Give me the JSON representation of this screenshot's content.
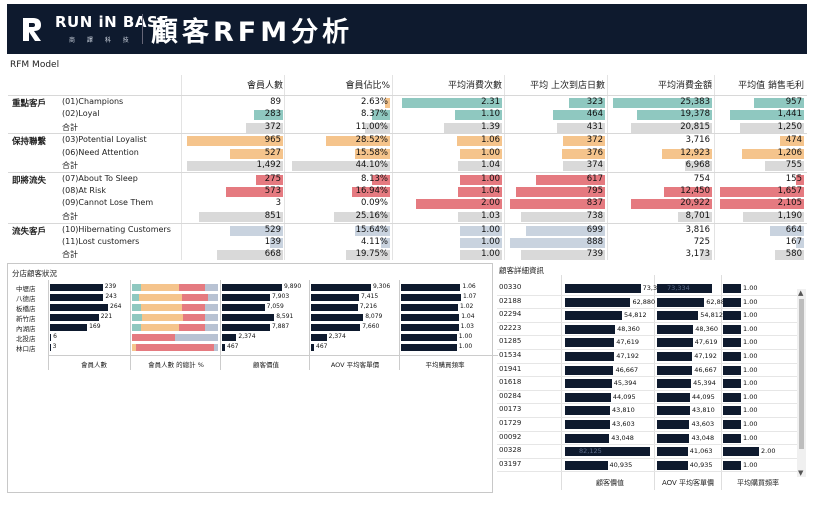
{
  "header": {
    "brand_name": "RUN iN BASE",
    "brand_sub": "商 譯 科 技",
    "title": "顧客RFM分析"
  },
  "model_label": "RFM Model",
  "colors": {
    "navy": "#0e1a2e",
    "teal": "#8fc8c0",
    "orange": "#f5c48c",
    "red": "#e57a80",
    "grey": "#d9d9d9",
    "slate": "#c9d3df"
  },
  "columns": [
    "會員人數",
    "會員佔比%",
    "平均消費次數",
    "平均 上次到店日數",
    "平均消費金額",
    "平均值 銷售毛利"
  ],
  "groups": [
    {
      "name": "重點客戶",
      "rows": [
        {
          "segment": "(01)Champions",
          "values": [
            "89",
            "2.63%",
            "2.31",
            "323",
            "25,383",
            "957"
          ],
          "fill": [
            0,
            0.05,
            0.96,
            0.38,
            1,
            0.59
          ],
          "color": [
            "none",
            "orange",
            "teal",
            "teal",
            "teal",
            "teal"
          ]
        },
        {
          "segment": "(02)Loyal",
          "values": [
            "283",
            "8.37%",
            "1.10",
            "464",
            "19,378",
            "1,441"
          ],
          "fill": [
            0.3,
            0.18,
            0.45,
            0.55,
            0.76,
            0.88
          ],
          "color": [
            "teal",
            "teal",
            "teal",
            "teal",
            "teal",
            "teal"
          ]
        },
        {
          "segment": "合計",
          "values": [
            "372",
            "11.00%",
            "1.39",
            "431",
            "20,815",
            "1,250"
          ],
          "fill": [
            0.39,
            0.25,
            0.56,
            0.51,
            0.82,
            0.76
          ],
          "color": [
            "grey",
            "grey",
            "grey",
            "grey",
            "grey",
            "grey"
          ]
        }
      ]
    },
    {
      "name": "保持聯繫",
      "rows": [
        {
          "segment": "(03)Potential Loyalist",
          "values": [
            "965",
            "28.52%",
            "1.06",
            "372",
            "3,716",
            "474"
          ],
          "fill": [
            1,
            0.64,
            0.43,
            0.44,
            0.15,
            0.29
          ],
          "color": [
            "orange",
            "orange",
            "orange",
            "orange",
            "none",
            "orange"
          ]
        },
        {
          "segment": "(06)Need Attention",
          "values": [
            "527",
            "15.58%",
            "1.00",
            "376",
            "12,923",
            "1,206"
          ],
          "fill": [
            0.55,
            0.35,
            0.4,
            0.45,
            0.51,
            0.74
          ],
          "color": [
            "orange",
            "orange",
            "orange",
            "orange",
            "orange",
            "orange"
          ]
        },
        {
          "segment": "合計",
          "values": [
            "1,492",
            "44.10%",
            "1.04",
            "374",
            "6,968",
            "755"
          ],
          "fill": [
            1,
            0.98,
            0.42,
            0.44,
            0.27,
            0.46
          ],
          "color": [
            "grey",
            "grey",
            "grey",
            "grey",
            "grey",
            "grey"
          ]
        }
      ]
    },
    {
      "name": "即將流失",
      "rows": [
        {
          "segment": "(07)About To Sleep",
          "values": [
            "275",
            "8.13%",
            "1.00",
            "617",
            "754",
            "155"
          ],
          "fill": [
            0.28,
            0.18,
            0.4,
            0.73,
            0.03,
            0.1
          ],
          "color": [
            "red",
            "red",
            "red",
            "red",
            "none",
            "red"
          ]
        },
        {
          "segment": "(08)At Risk",
          "values": [
            "573",
            "16.94%",
            "1.04",
            "795",
            "12,450",
            "1,657"
          ],
          "fill": [
            0.59,
            0.38,
            0.42,
            0.94,
            0.49,
            1
          ],
          "color": [
            "red",
            "red",
            "red",
            "red",
            "red",
            "red"
          ]
        },
        {
          "segment": "(09)Cannot Lose Them",
          "values": [
            "3",
            "0.09%",
            "2.00",
            "837",
            "20,922",
            "2,105"
          ],
          "fill": [
            0,
            0,
            0.83,
            1,
            0.82,
            1
          ],
          "color": [
            "none",
            "none",
            "red",
            "red",
            "red",
            "red"
          ]
        },
        {
          "segment": "合計",
          "values": [
            "851",
            "25.16%",
            "1.03",
            "738",
            "8,701",
            "1,190"
          ],
          "fill": [
            0.88,
            0.56,
            0.42,
            0.88,
            0.34,
            0.73
          ],
          "color": [
            "grey",
            "grey",
            "grey",
            "grey",
            "grey",
            "grey"
          ]
        }
      ]
    },
    {
      "name": "流失客戶",
      "rows": [
        {
          "segment": "(10)Hibernating Customers",
          "values": [
            "529",
            "15.64%",
            "1.00",
            "699",
            "3,816",
            "664"
          ],
          "fill": [
            0.55,
            0.35,
            0.4,
            0.83,
            0.15,
            0.4
          ],
          "color": [
            "slate",
            "slate",
            "slate",
            "slate",
            "none",
            "slate"
          ]
        },
        {
          "segment": "(11)Lost customers",
          "values": [
            "139",
            "4.11%",
            "1.00",
            "888",
            "725",
            "167"
          ],
          "fill": [
            0.14,
            0.09,
            0.4,
            1,
            0.03,
            0.1
          ],
          "color": [
            "slate",
            "slate",
            "slate",
            "slate",
            "none",
            "slate"
          ]
        },
        {
          "segment": "合計",
          "values": [
            "668",
            "19.75%",
            "1.00",
            "739",
            "3,173",
            "580"
          ],
          "fill": [
            0.69,
            0.44,
            0.4,
            0.88,
            0.12,
            0.35
          ],
          "color": [
            "grey",
            "grey",
            "grey",
            "grey",
            "grey",
            "grey"
          ]
        }
      ]
    }
  ],
  "branch_panel": {
    "title": "分店顧客狀況",
    "branches": [
      "中壢店",
      "八德店",
      "板橋店",
      "新竹店",
      "內湖店",
      "北投店",
      "林口店"
    ],
    "member_count": [
      "239",
      "243",
      "264",
      "221",
      "169",
      "6",
      "3"
    ],
    "member_fill": [
      0.91,
      0.92,
      1,
      0.84,
      0.64,
      0.02,
      0.01
    ],
    "share_stacks": [
      [
        0.1,
        0.45,
        0.3,
        0.15
      ],
      [
        0.08,
        0.5,
        0.3,
        0.12
      ],
      [
        0.1,
        0.48,
        0.27,
        0.15
      ],
      [
        0.12,
        0.47,
        0.26,
        0.15
      ],
      [
        0.1,
        0.45,
        0.3,
        0.15
      ],
      [
        0,
        0,
        0.5,
        0.5
      ],
      [
        0,
        0.05,
        0.9,
        0.05
      ]
    ],
    "customer_value": [
      "9,890",
      "7,903",
      "7,059",
      "8,591",
      "7,887",
      "2,374",
      "467"
    ],
    "customer_value_fill": [
      1,
      0.8,
      0.71,
      0.87,
      0.8,
      0.24,
      0.05
    ],
    "aov": [
      "9,306",
      "7,415",
      "7,216",
      "8,079",
      "7,660",
      "2,374",
      "467"
    ],
    "aov_fill": [
      1,
      0.8,
      0.78,
      0.87,
      0.82,
      0.26,
      0.05
    ],
    "frequency": [
      "1.06",
      "1.07",
      "1.02",
      "1.04",
      "1.03",
      "1.00",
      "1.00"
    ],
    "frequency_fill": [
      0.99,
      1,
      0.95,
      0.97,
      0.96,
      0.93,
      0.93
    ],
    "footers": [
      "會員人數",
      "會員人數 的總計 %",
      "顧客價值",
      "AOV 平均客單價",
      "平均購買頻率"
    ]
  },
  "detail_panel": {
    "title": "顧客詳細資訊",
    "rows": [
      {
        "id": "00330",
        "value": "73,334",
        "aov": "73,334",
        "freq": "1.00"
      },
      {
        "id": "02188",
        "value": "62,880",
        "aov": "62,880",
        "freq": "1.00"
      },
      {
        "id": "02294",
        "value": "54,812",
        "aov": "54,812",
        "freq": "1.00"
      },
      {
        "id": "02223",
        "value": "48,360",
        "aov": "48,360",
        "freq": "1.00"
      },
      {
        "id": "01285",
        "value": "47,619",
        "aov": "47,619",
        "freq": "1.00"
      },
      {
        "id": "01534",
        "value": "47,192",
        "aov": "47,192",
        "freq": "1.00"
      },
      {
        "id": "01941",
        "value": "46,667",
        "aov": "46,667",
        "freq": "1.00"
      },
      {
        "id": "01618",
        "value": "45,394",
        "aov": "45,394",
        "freq": "1.00"
      },
      {
        "id": "00284",
        "value": "44,095",
        "aov": "44,095",
        "freq": "1.00"
      },
      {
        "id": "00173",
        "value": "43,810",
        "aov": "43,810",
        "freq": "1.00"
      },
      {
        "id": "01729",
        "value": "43,603",
        "aov": "43,603",
        "freq": "1.00"
      },
      {
        "id": "00092",
        "value": "43,048",
        "aov": "43,048",
        "freq": "1.00"
      },
      {
        "id": "00328",
        "value": "82,125",
        "aov": "41,063",
        "freq": "2.00"
      },
      {
        "id": "03197",
        "value": "40,935",
        "aov": "40,935",
        "freq": "1.00"
      }
    ],
    "value_fill": [
      0.89,
      0.77,
      0.67,
      0.59,
      0.58,
      0.58,
      0.57,
      0.55,
      0.54,
      0.53,
      0.53,
      0.52,
      1,
      0.5
    ],
    "aov_fill": [
      1,
      0.86,
      0.75,
      0.66,
      0.65,
      0.64,
      0.64,
      0.62,
      0.6,
      0.6,
      0.59,
      0.59,
      0.56,
      0.56
    ],
    "freq_fill": [
      0.5,
      0.5,
      0.5,
      0.5,
      0.5,
      0.5,
      0.5,
      0.5,
      0.5,
      0.5,
      0.5,
      0.5,
      1,
      0.5
    ],
    "footers": [
      "顧客價值",
      "AOV 平均客單價",
      "平均購買頻率"
    ]
  }
}
